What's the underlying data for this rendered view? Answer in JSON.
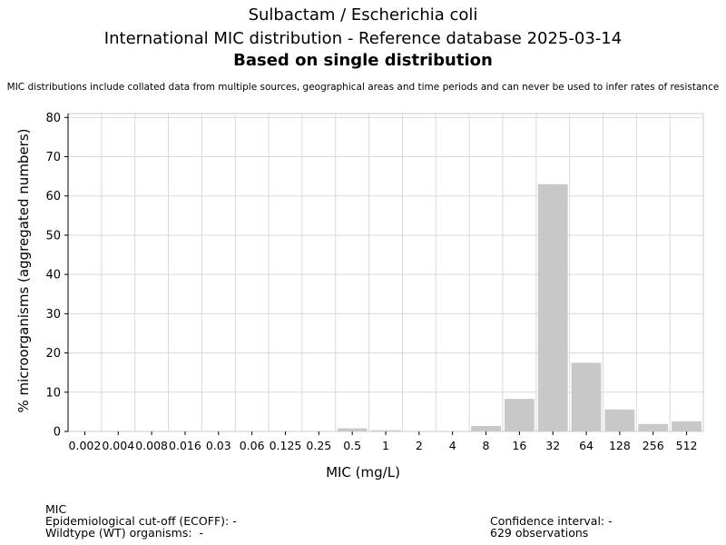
{
  "header": {
    "title": "Sulbactam / Escherichia coli",
    "subtitle": "International MIC distribution - Reference database 2025-03-14",
    "basis": "Based on single distribution",
    "note": "MIC distributions include collated data from multiple sources, geographical areas and time periods and can never be used to infer rates of resistance"
  },
  "chart_data": {
    "type": "bar",
    "categories": [
      "0.002",
      "0.004",
      "0.008",
      "0.016",
      "0.03",
      "0.06",
      "0.125",
      "0.25",
      "0.5",
      "1",
      "2",
      "4",
      "8",
      "16",
      "32",
      "64",
      "128",
      "256",
      "512"
    ],
    "values": [
      0,
      0,
      0,
      0,
      0,
      0,
      0,
      0,
      0.8,
      0.3,
      0,
      0,
      1.4,
      8.3,
      63.0,
      17.5,
      5.6,
      1.9,
      2.6
    ],
    "xlabel": "MIC (mg/L)",
    "ylabel": "% microorganisms (aggregated numbers)",
    "ylim": [
      0,
      81
    ],
    "yticks": [
      0,
      10,
      20,
      30,
      40,
      50,
      60,
      70,
      80
    ],
    "grid": true,
    "bar_color": "#c8c8c8",
    "grid_color": "#d9d9d9"
  },
  "footer": {
    "mic_label": "MIC",
    "ecoff": "Epidemiological cut-off (ECOFF): -",
    "wildtype": "Wildtype (WT) organisms:  -",
    "confidence": "Confidence interval: -",
    "observations": "629 observations"
  }
}
